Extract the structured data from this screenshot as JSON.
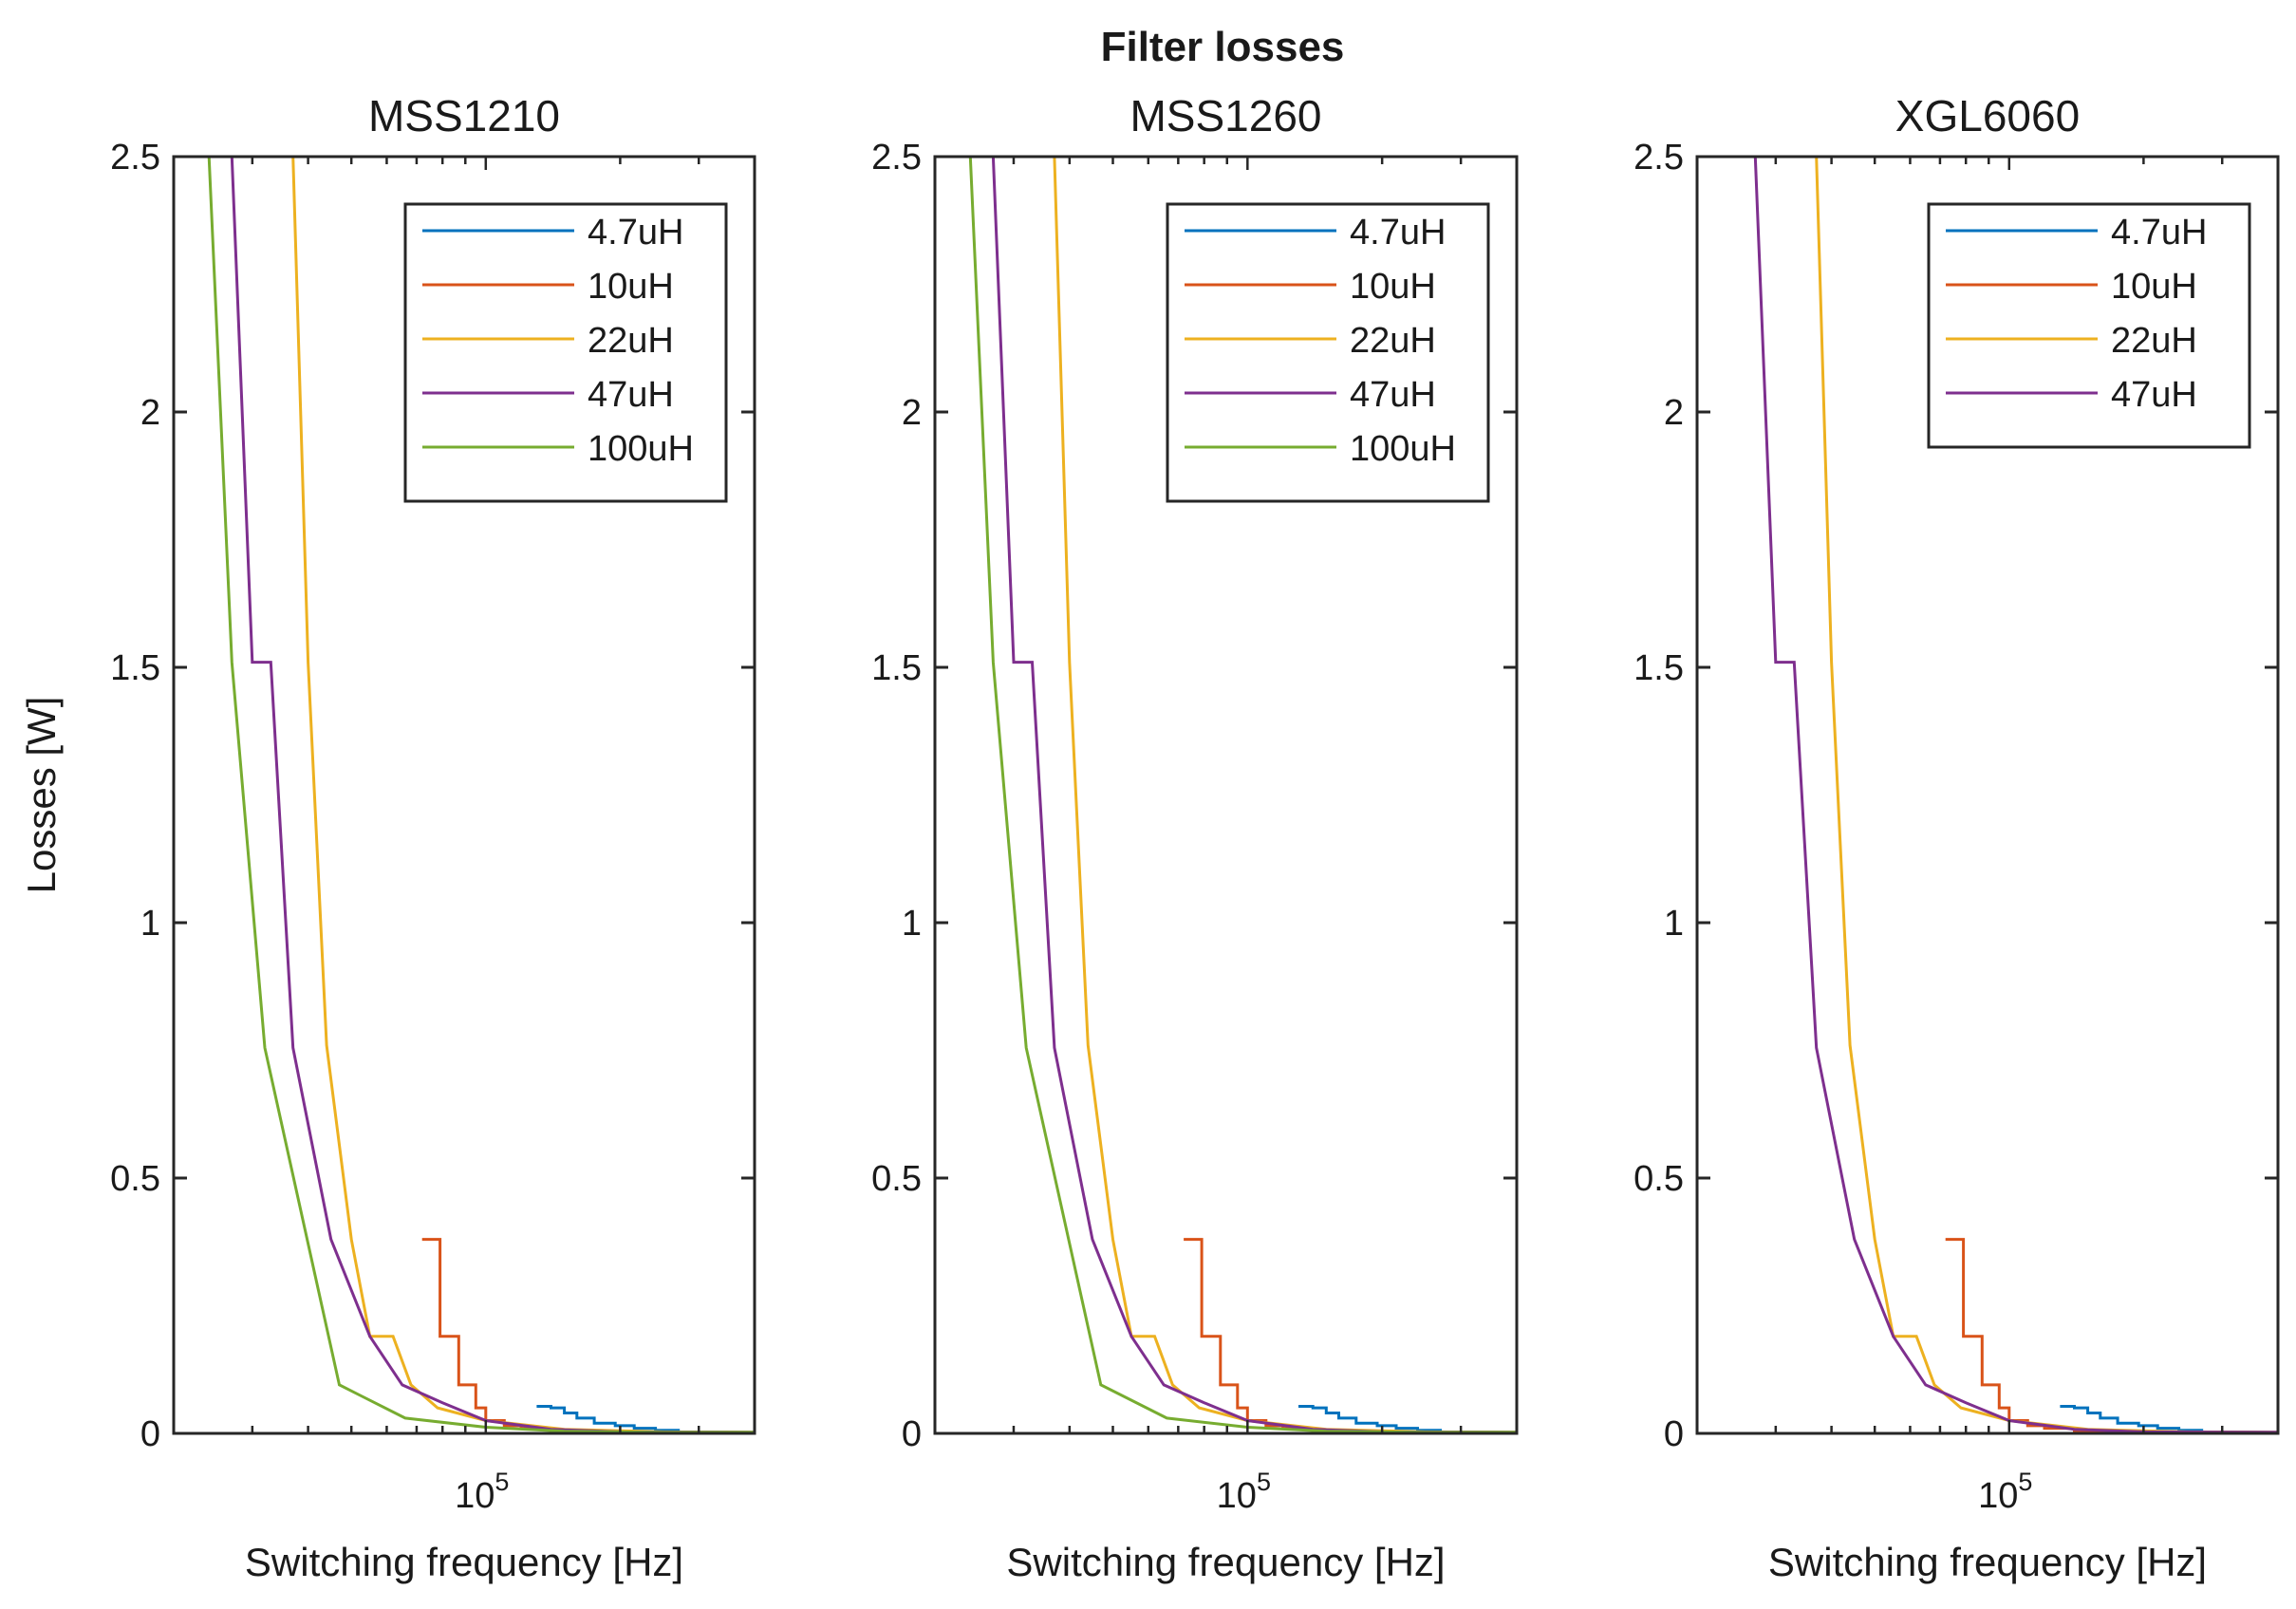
{
  "figure_title": "Filter losses",
  "colors": {
    "4.7uH": "#0072BD",
    "10uH": "#D95319",
    "22uH": "#EDB120",
    "47uH": "#7E2F8E",
    "100uH": "#77AC30"
  },
  "chart_data": [
    {
      "type": "line",
      "title": "MSS1210",
      "xlabel": "Switching frequency [Hz]",
      "ylabel": "Losses [W]",
      "xscale": "log",
      "xlim": [
        20000,
        400000
      ],
      "ylim": [
        0,
        2.5
      ],
      "yticks": [
        0,
        0.5,
        1,
        1.5,
        2,
        2.5
      ],
      "ytick_labels": [
        "0",
        "0.5",
        "1",
        "1.5",
        "2",
        "2.5"
      ],
      "xtick_labels": [
        {
          "value": 100000,
          "base": "10",
          "exp": "5"
        }
      ],
      "legend_location": "top-right",
      "series": [
        {
          "name": "4.7uH",
          "x": [
            130000,
            140000,
            140000,
            150000,
            150000,
            160000,
            160000,
            175000,
            175000,
            195000,
            195000,
            215000,
            215000,
            240000,
            240000,
            270000,
            270000,
            400000
          ],
          "y": [
            0.053,
            0.053,
            0.05,
            0.05,
            0.04,
            0.04,
            0.03,
            0.03,
            0.02,
            0.02,
            0.015,
            0.015,
            0.01,
            0.01,
            0.006,
            0.006,
            0.003,
            0.002
          ]
        },
        {
          "name": "10uH",
          "x": [
            72000,
            79000,
            79000,
            87000,
            87000,
            95000,
            95000,
            100000,
            100000,
            110000,
            110000,
            120000,
            120000,
            140000,
            140000,
            160000,
            160000,
            400000
          ],
          "y": [
            0.38,
            0.38,
            0.19,
            0.19,
            0.095,
            0.095,
            0.05,
            0.05,
            0.025,
            0.025,
            0.015,
            0.015,
            0.01,
            0.01,
            0.005,
            0.005,
            0.003,
            0.002
          ]
        },
        {
          "name": "22uH",
          "x": [
            37000,
            40000,
            40000,
            44000,
            44000,
            50000,
            50000,
            55000,
            55000,
            62000,
            62000,
            68000,
            68000,
            78000,
            78000,
            100000,
            150000,
            250000,
            400000
          ],
          "y": [
            2.5,
            1.51,
            1.51,
            0.76,
            0.76,
            0.38,
            0.38,
            0.19,
            0.19,
            0.19,
            0.19,
            0.095,
            0.095,
            0.05,
            0.05,
            0.025,
            0.008,
            0.003,
            0.002
          ]
        },
        {
          "name": "47uH",
          "x": [
            27000,
            30000,
            33000,
            37000,
            45000,
            55000,
            65000,
            80000,
            100000,
            140000,
            200000,
            400000
          ],
          "y": [
            2.5,
            1.51,
            1.51,
            0.755,
            0.38,
            0.19,
            0.095,
            0.06,
            0.025,
            0.008,
            0.003,
            0.002
          ]
        },
        {
          "name": "100uH",
          "x": [
            24000,
            27000,
            32000,
            47000,
            66000,
            100000,
            150000,
            250000,
            400000
          ],
          "y": [
            2.5,
            1.51,
            0.755,
            0.095,
            0.03,
            0.012,
            0.004,
            0.002,
            0.002
          ]
        }
      ]
    },
    {
      "type": "line",
      "title": "MSS1260",
      "xlabel": "Switching frequency [Hz]",
      "ylabel": "",
      "xscale": "log",
      "xlim": [
        20000,
        400000
      ],
      "ylim": [
        0,
        2.5
      ],
      "yticks": [
        0,
        0.5,
        1,
        1.5,
        2,
        2.5
      ],
      "ytick_labels": [
        "0",
        "0.5",
        "1",
        "1.5",
        "2",
        "2.5"
      ],
      "xtick_labels": [
        {
          "value": 100000,
          "base": "10",
          "exp": "5"
        }
      ],
      "legend_location": "top-right",
      "series": [
        {
          "name": "4.7uH",
          "x": [
            130000,
            140000,
            140000,
            150000,
            150000,
            160000,
            160000,
            175000,
            175000,
            195000,
            195000,
            215000,
            215000,
            240000,
            240000,
            270000,
            270000,
            400000
          ],
          "y": [
            0.053,
            0.053,
            0.05,
            0.05,
            0.04,
            0.04,
            0.03,
            0.03,
            0.02,
            0.02,
            0.015,
            0.015,
            0.01,
            0.01,
            0.006,
            0.006,
            0.003,
            0.002
          ]
        },
        {
          "name": "10uH",
          "x": [
            72000,
            79000,
            79000,
            87000,
            87000,
            95000,
            95000,
            100000,
            100000,
            110000,
            110000,
            120000,
            120000,
            140000,
            140000,
            160000,
            160000,
            400000
          ],
          "y": [
            0.38,
            0.38,
            0.19,
            0.19,
            0.095,
            0.095,
            0.05,
            0.05,
            0.025,
            0.025,
            0.015,
            0.015,
            0.01,
            0.01,
            0.005,
            0.005,
            0.003,
            0.002
          ]
        },
        {
          "name": "22uH",
          "x": [
            37000,
            40000,
            40000,
            44000,
            44000,
            50000,
            50000,
            55000,
            55000,
            62000,
            62000,
            68000,
            68000,
            78000,
            78000,
            100000,
            150000,
            250000,
            400000
          ],
          "y": [
            2.5,
            1.51,
            1.51,
            0.76,
            0.76,
            0.38,
            0.38,
            0.19,
            0.19,
            0.19,
            0.19,
            0.095,
            0.095,
            0.05,
            0.05,
            0.025,
            0.008,
            0.003,
            0.002
          ]
        },
        {
          "name": "47uH",
          "x": [
            27000,
            30000,
            33000,
            37000,
            45000,
            55000,
            65000,
            80000,
            100000,
            140000,
            200000,
            400000
          ],
          "y": [
            2.5,
            1.51,
            1.51,
            0.755,
            0.38,
            0.19,
            0.095,
            0.06,
            0.025,
            0.008,
            0.003,
            0.002
          ]
        },
        {
          "name": "100uH",
          "x": [
            24000,
            27000,
            32000,
            47000,
            66000,
            100000,
            150000,
            250000,
            400000
          ],
          "y": [
            2.5,
            1.51,
            0.755,
            0.095,
            0.03,
            0.012,
            0.004,
            0.002,
            0.002
          ]
        }
      ]
    },
    {
      "type": "line",
      "title": "XGL6060",
      "xlabel": "Switching frequency [Hz]",
      "ylabel": "",
      "xscale": "log",
      "xlim": [
        20000,
        400000
      ],
      "ylim": [
        0,
        2.5
      ],
      "yticks": [
        0,
        0.5,
        1,
        1.5,
        2,
        2.5
      ],
      "ytick_labels": [
        "0",
        "0.5",
        "1",
        "1.5",
        "2",
        "2.5"
      ],
      "xtick_labels": [
        {
          "value": 100000,
          "base": "10",
          "exp": "5"
        }
      ],
      "legend_location": "top-right",
      "series": [
        {
          "name": "4.7uH",
          "x": [
            130000,
            140000,
            140000,
            150000,
            150000,
            160000,
            160000,
            175000,
            175000,
            195000,
            195000,
            215000,
            215000,
            240000,
            240000,
            270000,
            270000,
            400000
          ],
          "y": [
            0.053,
            0.053,
            0.05,
            0.05,
            0.04,
            0.04,
            0.03,
            0.03,
            0.02,
            0.02,
            0.015,
            0.015,
            0.01,
            0.01,
            0.006,
            0.006,
            0.003,
            0.002
          ]
        },
        {
          "name": "10uH",
          "x": [
            72000,
            79000,
            79000,
            87000,
            87000,
            95000,
            95000,
            100000,
            100000,
            110000,
            110000,
            120000,
            120000,
            140000,
            140000,
            160000,
            160000,
            400000
          ],
          "y": [
            0.38,
            0.38,
            0.19,
            0.19,
            0.095,
            0.095,
            0.05,
            0.05,
            0.025,
            0.025,
            0.015,
            0.015,
            0.01,
            0.01,
            0.005,
            0.005,
            0.003,
            0.002
          ]
        },
        {
          "name": "22uH",
          "x": [
            37000,
            40000,
            40000,
            44000,
            44000,
            50000,
            50000,
            55000,
            55000,
            62000,
            62000,
            68000,
            68000,
            78000,
            78000,
            100000,
            150000,
            250000,
            400000
          ],
          "y": [
            2.5,
            1.51,
            1.51,
            0.76,
            0.76,
            0.38,
            0.38,
            0.19,
            0.19,
            0.19,
            0.19,
            0.095,
            0.095,
            0.05,
            0.05,
            0.025,
            0.008,
            0.003,
            0.002
          ]
        },
        {
          "name": "47uH",
          "x": [
            27000,
            30000,
            33000,
            37000,
            45000,
            55000,
            65000,
            80000,
            100000,
            140000,
            200000,
            400000
          ],
          "y": [
            2.5,
            1.51,
            1.51,
            0.755,
            0.38,
            0.19,
            0.095,
            0.06,
            0.025,
            0.008,
            0.003,
            0.002
          ]
        }
      ]
    }
  ]
}
